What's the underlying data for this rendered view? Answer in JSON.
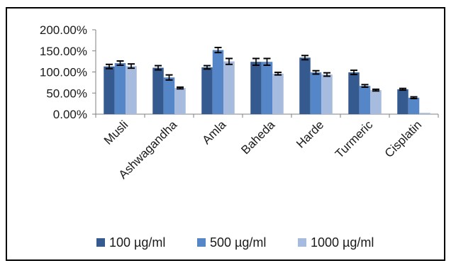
{
  "chart_data": {
    "type": "bar",
    "title": "",
    "xlabel": "",
    "ylabel": "",
    "ylim": [
      0,
      200
    ],
    "y_ticks": [
      {
        "value": 0,
        "label": "0.00%"
      },
      {
        "value": 50,
        "label": "50.00%"
      },
      {
        "value": 100,
        "label": "100.00%"
      },
      {
        "value": 150,
        "label": "150.00%"
      },
      {
        "value": 200,
        "label": "200.00%"
      }
    ],
    "grid": false,
    "legend_position": "bottom",
    "categories": [
      "Musli",
      "Ashwagandha",
      "Amla",
      "Baheda",
      "Harde",
      "Turmeric",
      "Cisplatin"
    ],
    "series": [
      {
        "name": "100 µg/ml",
        "color": "#355a8f",
        "values": [
          113,
          110,
          111,
          124,
          134,
          99,
          59
        ],
        "errors": [
          5,
          5,
          4,
          8,
          5,
          5,
          2
        ]
      },
      {
        "name": "500 µg/ml",
        "color": "#5486c8",
        "values": [
          121,
          87,
          152,
          124,
          99,
          67,
          39
        ],
        "errors": [
          5,
          6,
          6,
          8,
          4,
          3,
          2
        ]
      },
      {
        "name": "1000 µg/ml",
        "color": "#a7bbde",
        "values": [
          114,
          62,
          125,
          96,
          94,
          57,
          3
        ],
        "errors": [
          5,
          2,
          7,
          3,
          4,
          2,
          0
        ]
      }
    ]
  }
}
